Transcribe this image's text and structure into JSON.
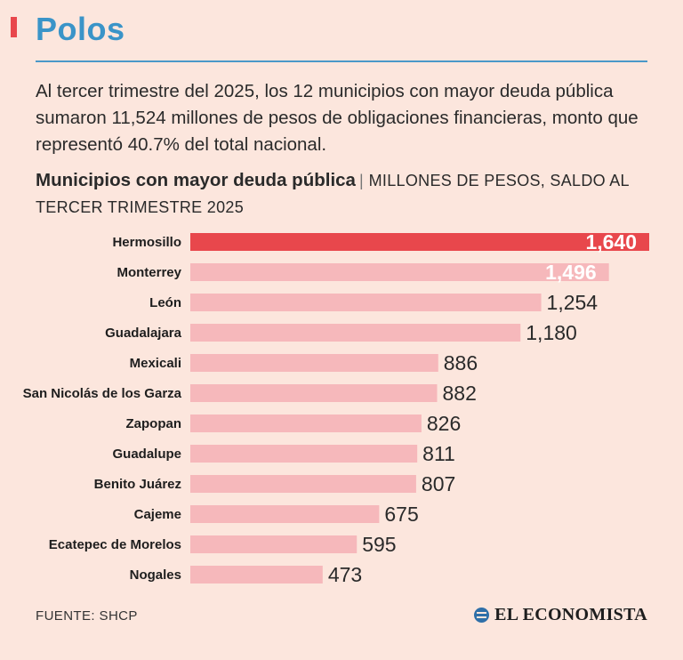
{
  "header": {
    "section_title": "Polos"
  },
  "intro_text": "Al tercer trimestre del 2025, los 12 municipios con mayor deuda pública sumaron 11,524 millones de pesos de obligaciones financieras, monto que representó 40.7% del total nacional.",
  "chart_data": {
    "type": "bar",
    "orientation": "horizontal",
    "title": "Municipios con mayor deuda pública",
    "subtitle": "MILLONES DE PESOS, SALDO AL TERCER TRIMESTRE 2025",
    "categories": [
      "Hermosillo",
      "Monterrey",
      "León",
      "Guadalajara",
      "Mexicali",
      "San Nicolás de los Garza",
      "Zapopan",
      "Guadalupe",
      "Benito Juárez",
      "Cajeme",
      "Ecatepec de Morelos",
      "Nogales"
    ],
    "values": [
      1640,
      1496,
      1254,
      1180,
      886,
      882,
      826,
      811,
      807,
      675,
      595,
      473
    ],
    "value_labels": [
      "1,640",
      "1,496",
      "1,254",
      "1,180",
      "886",
      "882",
      "826",
      "811",
      "807",
      "675",
      "595",
      "473"
    ],
    "highlight_index": 0,
    "colors": {
      "highlight": "#e8474c",
      "bar": "#f6b8bb"
    },
    "grid": false,
    "legend": "none"
  },
  "footer": {
    "source": "FUENTE: SHCP",
    "brand_name": "EL ECONOMISTA",
    "brand_icon": "el-economista-logo-icon"
  }
}
